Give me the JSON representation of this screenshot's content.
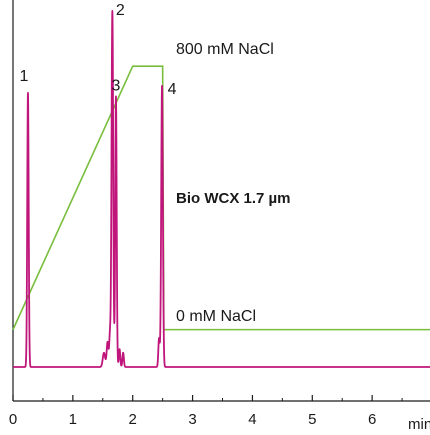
{
  "chart_data": {
    "type": "line",
    "title": "",
    "xlabel": "min",
    "ylabel": "",
    "xlim": [
      0,
      7
    ],
    "ylim": [
      0,
      100
    ],
    "x_ticks": [
      0,
      1,
      2,
      3,
      4,
      5,
      6
    ],
    "x_tick_labels": [
      "0",
      "1",
      "2",
      "3",
      "4",
      "5",
      "6"
    ],
    "grid": false,
    "series": [
      {
        "kind": "chromatogram",
        "color": "#c0157a",
        "baseline": 0,
        "peaks": [
          {
            "label": "1",
            "rt": 0.25,
            "height": 77,
            "width": 0.012
          },
          {
            "label": "2",
            "rt": 1.66,
            "height": 100,
            "width": 0.014
          },
          {
            "label": "3",
            "rt": 1.72,
            "height": 76,
            "width": 0.012
          },
          {
            "label": "4",
            "rt": 2.49,
            "height": 79,
            "width": 0.014
          }
        ],
        "minor_peaks": [
          {
            "rt": 1.52,
            "height": 4,
            "width": 0.02
          },
          {
            "rt": 1.58,
            "height": 7,
            "width": 0.015
          },
          {
            "rt": 1.62,
            "height": 9,
            "width": 0.012
          },
          {
            "rt": 1.78,
            "height": 5,
            "width": 0.012
          },
          {
            "rt": 1.84,
            "height": 4,
            "width": 0.012
          },
          {
            "rt": 2.44,
            "height": 8,
            "width": 0.012
          }
        ]
      },
      {
        "kind": "gradient",
        "color": "#78be3c",
        "x": [
          0,
          2.0,
          2.5,
          2.52,
          7.0
        ],
        "y": [
          10.5,
          84.5,
          84.5,
          10.5,
          10.5
        ]
      }
    ],
    "annotations": {
      "column": "Bio WCX 1.7 µm",
      "high_salt": "800 mM NaCl",
      "low_salt": "0 mM NaCl"
    }
  }
}
